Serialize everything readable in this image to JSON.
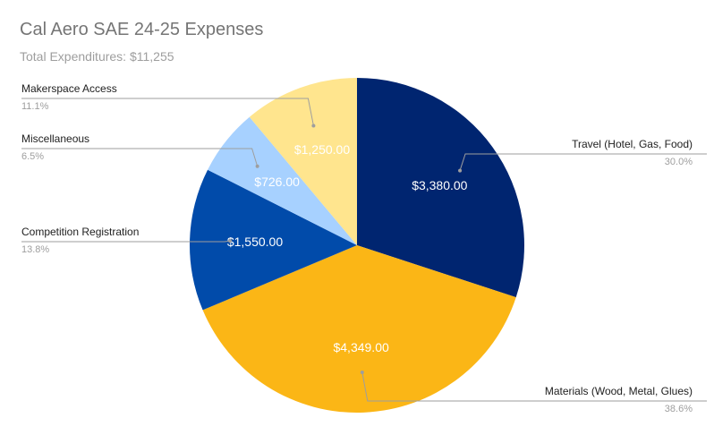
{
  "chart_data": {
    "type": "pie",
    "title": "Cal Aero SAE 24-25 Expenses",
    "subtitle": "Total Expenditures: $11,255",
    "slices": [
      {
        "label": "Travel (Hotel, Gas, Food)",
        "value": 3380.0,
        "value_label": "$3,380.00",
        "percent_label": "30.0%",
        "color": "#002570"
      },
      {
        "label": "Materials (Wood, Metal, Glues)",
        "value": 4349.0,
        "value_label": "$4,349.00",
        "percent_label": "38.6%",
        "color": "#FBB616"
      },
      {
        "label": "Competition Registration",
        "value": 1550.0,
        "value_label": "$1,550.00",
        "percent_label": "13.8%",
        "color": "#014BAA"
      },
      {
        "label": "Miscellaneous",
        "value": 726.0,
        "value_label": "$726.00",
        "percent_label": "6.5%",
        "color": "#A7D1FF"
      },
      {
        "label": "Makerspace Access",
        "value": 1250.0,
        "value_label": "$1,250.00",
        "percent_label": "11.1%",
        "color": "#FFE58E"
      }
    ],
    "legend": "outside labels with leader lines"
  }
}
